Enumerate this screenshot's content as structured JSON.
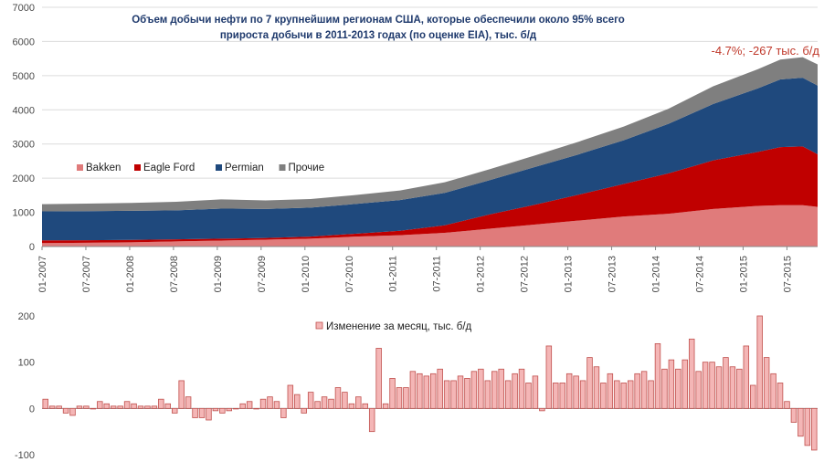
{
  "chart_data": [
    {
      "type": "area",
      "stacked": true,
      "title": "Объем добычи нефти по 7 крупнейшим  регионам США,  которые обеспечили около 95% всего",
      "subtitle": "прироста добычи в 2011-2013 годах (по оценке EIA), тыс. б/д",
      "annotation": "-4.7%; -267 тыс. б/д",
      "ylim": [
        0,
        7000
      ],
      "yticks": [
        "0",
        "1000",
        "2000",
        "3000",
        "4000",
        "5000",
        "6000",
        "7000"
      ],
      "xticks": [
        "01-2007",
        "07-2007",
        "01-2008",
        "07-2008",
        "01-2009",
        "07-2009",
        "01-2010",
        "07-2010",
        "01-2011",
        "07-2011",
        "01-2012",
        "07-2012",
        "01-2013",
        "07-2013",
        "01-2014",
        "07-2014",
        "01-2015",
        "07-2015"
      ],
      "legend_position": "left-center",
      "x": [
        "2007-01",
        "2007-07",
        "2008-01",
        "2008-07",
        "2009-01",
        "2009-07",
        "2010-01",
        "2010-07",
        "2011-01",
        "2011-07",
        "2012-01",
        "2012-07",
        "2013-01",
        "2013-07",
        "2014-01",
        "2014-07",
        "2015-01",
        "2015-04",
        "2015-07",
        "2015-09"
      ],
      "series": [
        {
          "name": "Bakken",
          "color": "#e07b7b",
          "values": [
            100,
            110,
            125,
            150,
            175,
            200,
            230,
            290,
            330,
            400,
            520,
            640,
            760,
            880,
            960,
            1100,
            1190,
            1210,
            1210,
            1160
          ]
        },
        {
          "name": "Eagle Ford",
          "color": "#c00000",
          "values": [
            80,
            75,
            70,
            60,
            55,
            50,
            60,
            85,
            130,
            220,
            420,
            580,
            760,
            950,
            1180,
            1420,
            1580,
            1700,
            1720,
            1540
          ]
        },
        {
          "name": "Permian",
          "color": "#1f497d",
          "values": [
            850,
            850,
            850,
            850,
            880,
            850,
            850,
            870,
            900,
            950,
            1000,
            1100,
            1180,
            1280,
            1450,
            1650,
            1860,
            1980,
            2010,
            2010
          ]
        },
        {
          "name": "Прочие",
          "color": "#7f7f7f",
          "values": [
            210,
            220,
            230,
            250,
            270,
            250,
            250,
            260,
            280,
            310,
            320,
            340,
            370,
            400,
            440,
            520,
            560,
            580,
            600,
            620
          ]
        }
      ]
    },
    {
      "type": "bar",
      "ylim": [
        -100,
        200
      ],
      "yticks": [
        "-100",
        "0",
        "100",
        "200"
      ],
      "series": [
        {
          "name": "Изменение за месяц, тыс. б/д",
          "color": "#f4b6b6",
          "edge_color": "#c0504d",
          "values": [
            20,
            5,
            5,
            -10,
            -15,
            5,
            5,
            0,
            15,
            10,
            5,
            5,
            15,
            10,
            5,
            5,
            5,
            20,
            10,
            -10,
            60,
            25,
            -20,
            -20,
            -25,
            -5,
            -10,
            -5,
            0,
            10,
            15,
            0,
            20,
            25,
            15,
            -20,
            50,
            30,
            -10,
            35,
            15,
            25,
            20,
            45,
            35,
            10,
            25,
            10,
            -50,
            130,
            10,
            65,
            45,
            45,
            80,
            75,
            70,
            75,
            85,
            60,
            60,
            70,
            65,
            80,
            85,
            60,
            80,
            85,
            60,
            75,
            85,
            55,
            70,
            -5,
            135,
            55,
            55,
            75,
            70,
            60,
            110,
            90,
            55,
            75,
            60,
            55,
            60,
            75,
            80,
            60,
            140,
            85,
            105,
            85,
            105,
            150,
            80,
            100,
            100,
            90,
            110,
            90,
            85,
            135,
            50,
            200,
            110,
            75,
            55,
            15,
            -30,
            -60,
            -80,
            -90
          ]
        }
      ]
    }
  ]
}
